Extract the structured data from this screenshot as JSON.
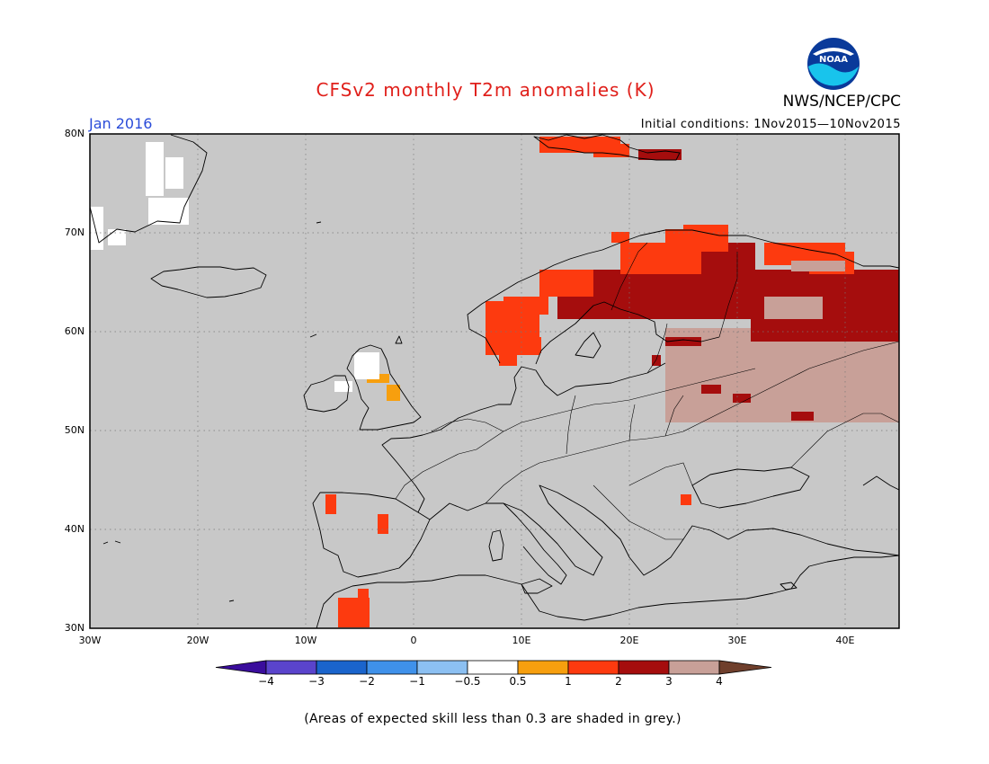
{
  "header": {
    "title": "CFSv2 monthly T2m anomalies (K)",
    "period": "Jan 2016",
    "initial_conditions": "Initial conditions: 1Nov2015—10Nov2015",
    "agency": "NWS/NCEP/CPC",
    "logo_text": "NOAA"
  },
  "axes": {
    "lat_labels": [
      "80N",
      "70N",
      "60N",
      "50N",
      "40N",
      "30N"
    ],
    "lon_labels": [
      "30W",
      "20W",
      "10W",
      "0",
      "10E",
      "20E",
      "30E",
      "40E"
    ]
  },
  "colorbar": {
    "labels": [
      "−4",
      "−3",
      "−2",
      "−1",
      "−0.5",
      "0.5",
      "1",
      "2",
      "3",
      "4"
    ],
    "colors": [
      "#3a0d9c",
      "#5a44cc",
      "#1a64cc",
      "#3f91ea",
      "#8cc0f2",
      "#ffffff",
      "#f79f0e",
      "#fd3a0f",
      "#a50d0d",
      "#c8a098",
      "#6f3f2c"
    ]
  },
  "footnote": "(Areas of expected skill less than 0.3 are shaded in grey.)",
  "colors": {
    "map_background": "#c8c8c8",
    "title": "#e0201b",
    "period": "#2a4cd9"
  }
}
